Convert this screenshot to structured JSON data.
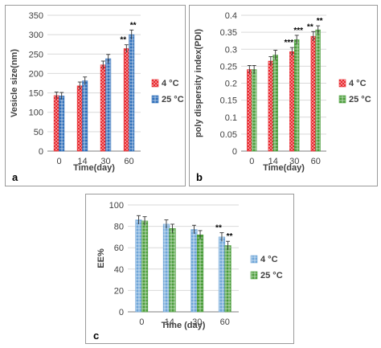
{
  "colors": {
    "red": "#e8282e",
    "blue": "#2f6fba",
    "green": "#4a9d3a",
    "lightblue": "#6fa6d8",
    "grid": "#d9d9d9",
    "axis": "#7f7f7f"
  },
  "chart_data": [
    {
      "id": "a",
      "panel_label": "a",
      "type": "bar",
      "xlabel": "Time(day)",
      "ylabel": "Vesicle size(nm)",
      "categories": [
        "0",
        "14",
        "30",
        "60"
      ],
      "ylim": [
        0,
        350
      ],
      "yticks": [
        0,
        50,
        100,
        150,
        200,
        250,
        300,
        350
      ],
      "grid": true,
      "legend_position": "right",
      "series": [
        {
          "name": "4 °C",
          "color": "#e8282e",
          "pattern": "dots",
          "values": [
            143,
            168,
            222,
            264
          ],
          "errors": [
            9,
            10,
            10,
            10
          ],
          "annotations": [
            "",
            "",
            "",
            "**"
          ]
        },
        {
          "name": "25 °C",
          "color": "#2f6fba",
          "pattern": "grid",
          "values": [
            142,
            181,
            238,
            300
          ],
          "errors": [
            9,
            10,
            11,
            12
          ],
          "annotations": [
            "",
            "",
            "",
            "**"
          ]
        }
      ]
    },
    {
      "id": "b",
      "panel_label": "b",
      "type": "bar",
      "xlabel": "Time(day)",
      "ylabel": "poly dispersity index(PDI)",
      "categories": [
        "0",
        "14",
        "30",
        "60"
      ],
      "ylim": [
        0,
        0.4
      ],
      "yticks": [
        "0",
        "0.05",
        "0.1",
        "0.15",
        "0.2",
        "0.25",
        "0.3",
        "0.35",
        "0.4"
      ],
      "grid": true,
      "legend_position": "right",
      "series": [
        {
          "name": "4 °C",
          "color": "#e8282e",
          "pattern": "dots",
          "values": [
            0.24,
            0.265,
            0.293,
            0.338
          ],
          "errors": [
            0.012,
            0.013,
            0.012,
            0.014
          ],
          "annotations": [
            "",
            "",
            "***",
            "**"
          ]
        },
        {
          "name": "25 °C",
          "color": "#4a9d3a",
          "pattern": "grid",
          "values": [
            0.24,
            0.283,
            0.328,
            0.357
          ],
          "errors": [
            0.012,
            0.014,
            0.013,
            0.012
          ],
          "annotations": [
            "",
            "",
            "***",
            "**"
          ]
        }
      ]
    },
    {
      "id": "c",
      "panel_label": "c",
      "type": "bar",
      "xlabel": "Time (day)",
      "ylabel": "EE%",
      "categories": [
        "0",
        "14",
        "30",
        "60"
      ],
      "ylim": [
        0,
        100
      ],
      "yticks": [
        0,
        20,
        40,
        60,
        80,
        100
      ],
      "grid": true,
      "legend_position": "right",
      "series": [
        {
          "name": "4 °C",
          "color": "#6fa6d8",
          "pattern": "grid",
          "values": [
            86,
            82,
            77,
            70
          ],
          "errors": [
            4,
            4,
            4,
            4
          ],
          "annotations": [
            "",
            "",
            "",
            "**"
          ]
        },
        {
          "name": "25 °C",
          "color": "#4a9d3a",
          "pattern": "grid",
          "values": [
            85,
            78,
            72,
            62
          ],
          "errors": [
            4,
            4,
            4,
            4
          ],
          "annotations": [
            "",
            "",
            "",
            "**"
          ]
        }
      ]
    }
  ]
}
